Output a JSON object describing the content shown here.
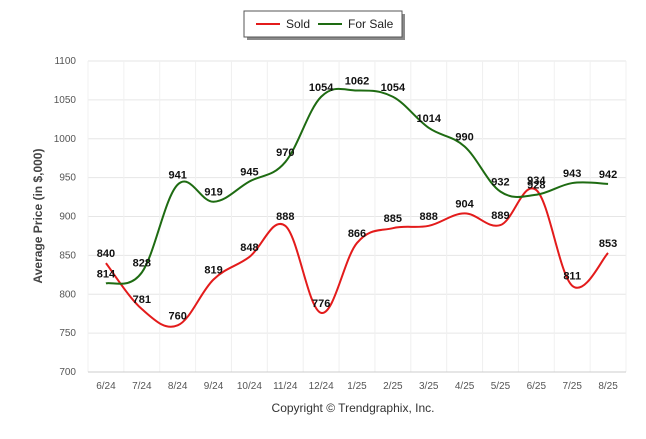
{
  "chart_data": {
    "type": "line",
    "categories": [
      "6/24",
      "7/24",
      "8/24",
      "9/24",
      "10/24",
      "11/24",
      "12/24",
      "1/25",
      "2/25",
      "3/25",
      "4/25",
      "5/25",
      "6/25",
      "7/25",
      "8/25"
    ],
    "series": [
      {
        "name": "Sold",
        "color": "#e31b1b",
        "values": [
          840,
          781,
          760,
          819,
          848,
          888,
          776,
          866,
          885,
          888,
          904,
          889,
          934,
          811,
          853
        ],
        "labels": [
          "840",
          "781",
          "760",
          "819",
          "848",
          "888",
          "776",
          "866",
          "885",
          "888",
          "904",
          "889",
          "934",
          "811",
          "853"
        ]
      },
      {
        "name": "For Sale",
        "color": "#1e6b12",
        "values": [
          814,
          828,
          941,
          919,
          945,
          970,
          1054,
          1062,
          1054,
          1014,
          990,
          932,
          928,
          943,
          942
        ],
        "labels": [
          "814",
          "828",
          "941",
          "919",
          "945",
          "970",
          "1054",
          "1062",
          "1054",
          "1014",
          "990",
          "932",
          "928",
          "943",
          "942"
        ]
      }
    ],
    "ylabel": "Average Price (in $,000)",
    "xlabel": "",
    "ylim": [
      700,
      1100
    ],
    "yticks": [
      700,
      750,
      800,
      850,
      900,
      950,
      1000,
      1050,
      1100
    ],
    "ytick_labels": [
      "700",
      "750",
      "800",
      "850",
      "900",
      "950",
      "1000",
      "1050",
      "1100"
    ],
    "grid": true,
    "legend_position": "top-center"
  },
  "footer": {
    "credit": "Copyright © Trendgraphix, Inc."
  }
}
